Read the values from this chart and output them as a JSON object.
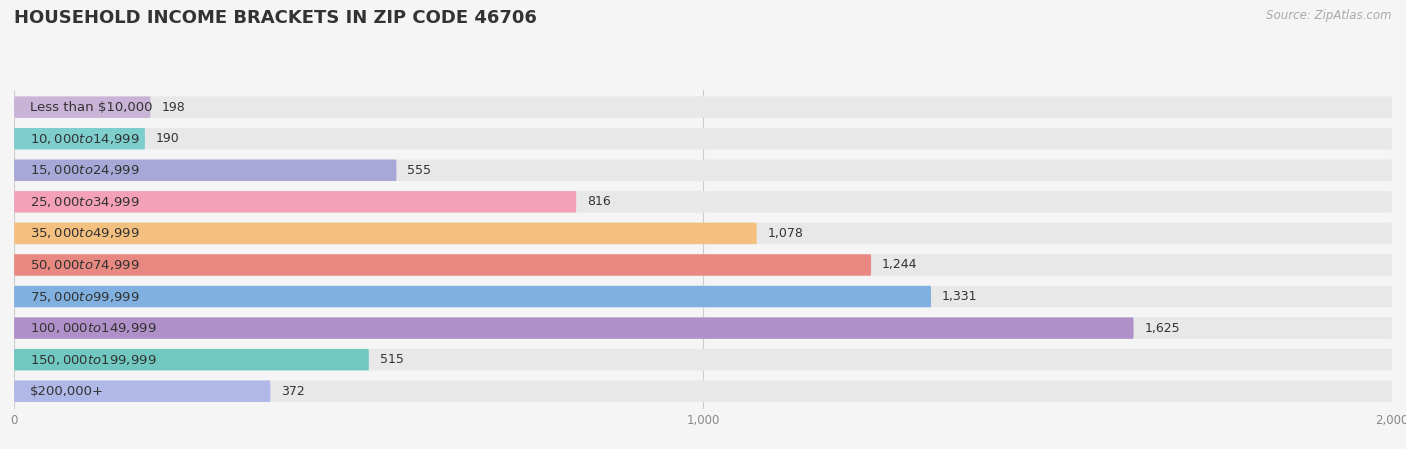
{
  "title": "HOUSEHOLD INCOME BRACKETS IN ZIP CODE 46706",
  "source": "Source: ZipAtlas.com",
  "categories": [
    "Less than $10,000",
    "$10,000 to $14,999",
    "$15,000 to $24,999",
    "$25,000 to $34,999",
    "$35,000 to $49,999",
    "$50,000 to $74,999",
    "$75,000 to $99,999",
    "$100,000 to $149,999",
    "$150,000 to $199,999",
    "$200,000+"
  ],
  "values": [
    198,
    190,
    555,
    816,
    1078,
    1244,
    1331,
    1625,
    515,
    372
  ],
  "bar_colors": [
    "#c9b4d8",
    "#7ecece",
    "#a8a8d8",
    "#f4a0b8",
    "#f4c080",
    "#e88880",
    "#80b0e0",
    "#b090c8",
    "#70c8c0",
    "#b0b8e8"
  ],
  "background_color": "#f5f5f5",
  "bar_background_color": "#e8e8e8",
  "xlim": [
    0,
    2000
  ],
  "xticks": [
    0,
    1000,
    2000
  ],
  "title_fontsize": 13,
  "label_fontsize": 9.5,
  "value_fontsize": 9,
  "source_fontsize": 8.5
}
